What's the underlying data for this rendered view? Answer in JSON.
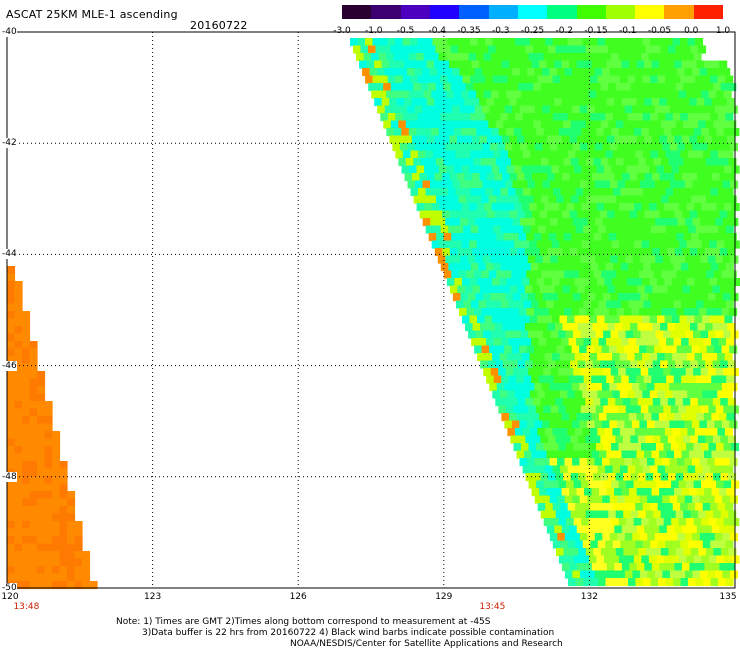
{
  "title": "ASCAT 25KM MLE-1 ascending",
  "date": "20160722",
  "colorbar": {
    "labels": [
      "-3.0",
      "-1.0",
      "-0.5",
      "-0.4",
      "-0.35",
      "-0.3",
      "-0.25",
      "-0.2",
      "-0.15",
      "-0.1",
      "-0.05",
      "0.0",
      "1.0"
    ],
    "colors": [
      "#2a0030",
      "#3c0070",
      "#4b00c0",
      "#2000ff",
      "#0060ff",
      "#00b0ff",
      "#00ffff",
      "#00ff80",
      "#40ff00",
      "#a0ff00",
      "#ffff00",
      "#ffa000",
      "#ff2000"
    ]
  },
  "map": {
    "lon_ticks": [
      "120",
      "123",
      "126",
      "129",
      "132",
      "135"
    ],
    "lat_ticks": [
      "-40",
      "-42",
      "-44",
      "-46",
      "-48",
      "-50"
    ],
    "lon_range": [
      120,
      135
    ],
    "lat_range": [
      -40,
      -50
    ],
    "grid": true,
    "time_labels": [
      {
        "text": "13:48",
        "lon": 120.4
      },
      {
        "text": "13:45",
        "lon": 130.0
      }
    ]
  },
  "notes": {
    "line1": "Note: 1) Times are GMT 2)Times along bottom correspond to measurement at -45S",
    "line2": "3)Data buffer is 22 hrs from 20160722 4) Black wind barbs indicate possible contamination",
    "line3": "NOAA/NESDIS/Center for Satellite Applications and Research"
  }
}
